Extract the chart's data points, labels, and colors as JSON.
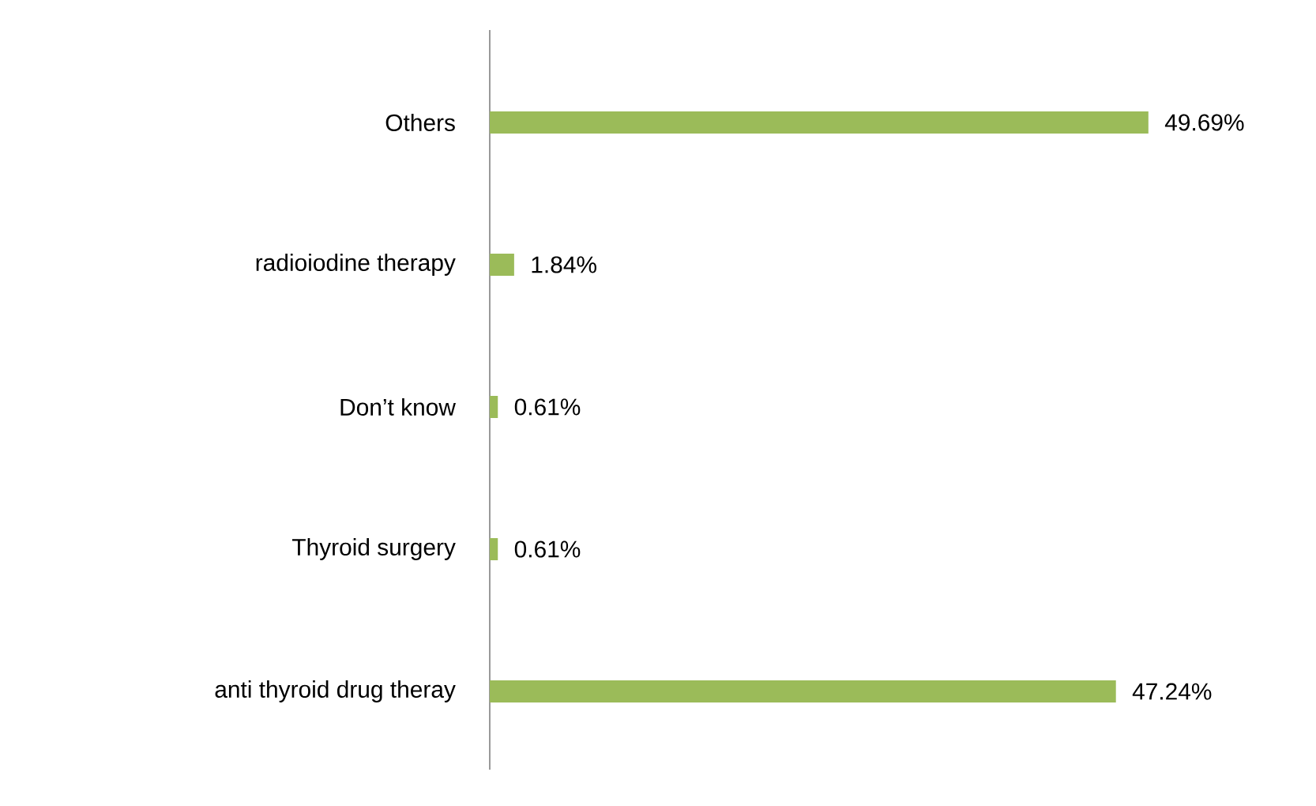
{
  "chart_data": {
    "type": "bar",
    "orientation": "horizontal",
    "categories": [
      "Others",
      "radioiodine therapy",
      "Don’t know",
      "Thyroid surgery",
      "anti thyroid drug theray"
    ],
    "values": [
      49.69,
      1.84,
      0.61,
      0.61,
      47.24
    ],
    "value_labels": [
      "49.69%",
      "1.84%",
      "0.61%",
      "0.61%",
      "47.24%"
    ],
    "color": "#9bbb59"
  }
}
